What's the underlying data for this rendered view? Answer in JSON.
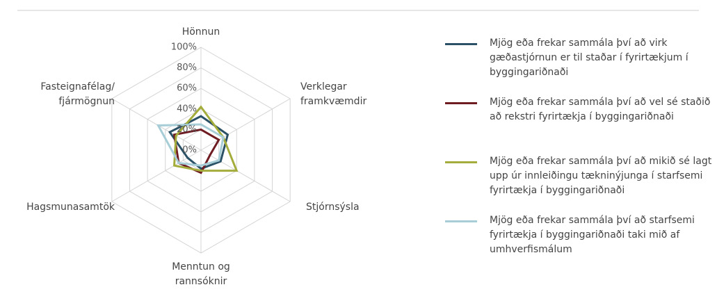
{
  "chart_data": {
    "type": "radar",
    "categories": [
      "Hönnun",
      "Verklegar framkvæmdir",
      "Stjórnsýsla",
      "Menntun og rannsóknir",
      "Hagsmunasamtök",
      "Fasteignafélag/ fjármögnun"
    ],
    "rlim": [
      0,
      100
    ],
    "rticks": [
      {
        "value": 0,
        "label": "0%"
      },
      {
        "value": 20,
        "label": "20%"
      },
      {
        "value": 40,
        "label": "40%"
      },
      {
        "value": 60,
        "label": "60%"
      },
      {
        "value": 80,
        "label": "80%"
      },
      {
        "value": 100,
        "label": "100%"
      }
    ],
    "grid": true,
    "legend": "right",
    "series": [
      {
        "name": "Mjög eða frekar sammála því að virk gæðastjórnun er til staðar í fyrirtækjum í byggingariðnaði",
        "color": "#2b5166",
        "values": [
          33,
          30,
          22,
          18,
          15,
          35
        ]
      },
      {
        "name": "Mjög eða frekar sammála því að vel sé staðið að rekstri fyrirtækja í byggingariðnaði",
        "color": "#6e1c22",
        "values": [
          20,
          20,
          10,
          22,
          25,
          30
        ]
      },
      {
        "name": "Mjög eða frekar sammála því að mikið sé lagt upp úr innleiðingu tækninýjunga í starfsemi fyrirtækja í byggingariðnaði",
        "color": "#a4ad3c",
        "values": [
          42,
          25,
          40,
          20,
          30,
          28
        ]
      },
      {
        "name": "Mjög eða frekar sammála því að starfsemi fyrirtækja í byggingariðnaði taki mið af umhverfismálum",
        "color": "#a7cdd7",
        "values": [
          25,
          25,
          20,
          15,
          25,
          48
        ]
      }
    ]
  }
}
